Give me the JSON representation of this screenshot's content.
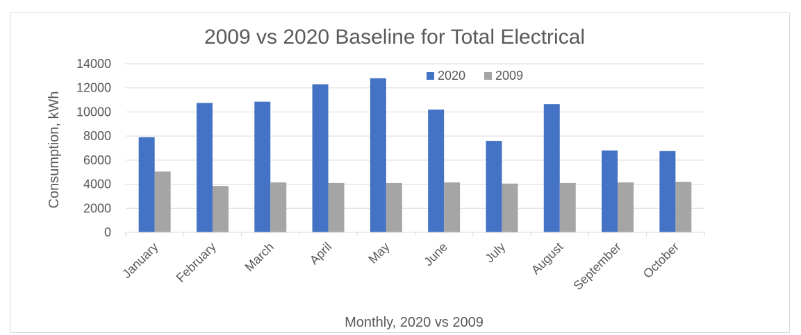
{
  "chart_data": {
    "type": "bar",
    "title": "2009 vs 2020 Baseline for Total Electrical",
    "xlabel": "Monthly, 2020 vs 2009",
    "ylabel": "Consumption, kWh",
    "categories": [
      "January",
      "February",
      "March",
      "April",
      "May",
      "June",
      "July",
      "August",
      "September",
      "October"
    ],
    "series": [
      {
        "name": "2020",
        "color": "#4472c4",
        "values": [
          7900,
          10750,
          10850,
          12300,
          12800,
          10200,
          7600,
          10650,
          6800,
          6750
        ]
      },
      {
        "name": "2009",
        "color": "#a5a5a5",
        "values": [
          5050,
          3850,
          4150,
          4100,
          4100,
          4150,
          4050,
          4100,
          4150,
          4200
        ]
      }
    ],
    "ylim": [
      0,
      14000
    ],
    "yticks": [
      0,
      2000,
      4000,
      6000,
      8000,
      10000,
      12000,
      14000
    ],
    "grid": true,
    "legend": "top-center"
  }
}
